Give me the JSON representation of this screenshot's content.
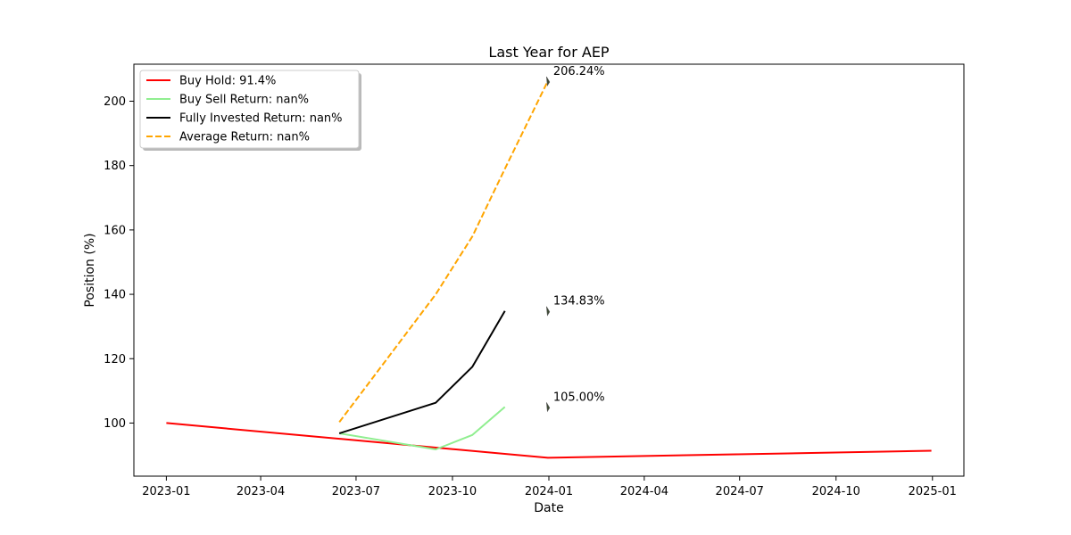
{
  "chart_data": {
    "type": "line",
    "title": "Last Year for AEP",
    "xlabel": "Date",
    "ylabel": "Position (%)",
    "xlim": [
      "2022-12-01",
      "2025-01-31"
    ],
    "ylim": [
      83.5,
      211.5
    ],
    "x_ticks": [
      "2023-01",
      "2023-04",
      "2023-07",
      "2023-10",
      "2024-01",
      "2024-04",
      "2024-07",
      "2024-10",
      "2025-01"
    ],
    "y_ticks": [
      100,
      120,
      140,
      160,
      180,
      200
    ],
    "grid": false,
    "legend_position": "top-left",
    "series": [
      {
        "name": "Buy Hold: 91.4%",
        "color": "#ff0000",
        "dash": "solid",
        "points": [
          [
            "2023-01-01",
            100.0
          ],
          [
            "2023-12-31",
            89.2
          ],
          [
            "2024-12-31",
            91.4
          ]
        ]
      },
      {
        "name": "Buy Sell Return: nan%",
        "color": "#90ee90",
        "dash": "solid",
        "points": [
          [
            "2023-06-15",
            96.8
          ],
          [
            "2023-09-15",
            91.8
          ],
          [
            "2023-10-20",
            96.3
          ],
          [
            "2023-11-20",
            105.0
          ]
        ]
      },
      {
        "name": "Fully Invested Return: nan%",
        "color": "#000000",
        "dash": "solid",
        "points": [
          [
            "2023-06-15",
            96.8
          ],
          [
            "2023-09-15",
            106.3
          ],
          [
            "2023-10-20",
            117.5
          ],
          [
            "2023-11-20",
            134.83
          ]
        ]
      },
      {
        "name": "Average Return: nan%",
        "color": "#ffa500",
        "dash": "dashed",
        "points": [
          [
            "2023-06-15",
            100.3
          ],
          [
            "2023-09-15",
            140.0
          ],
          [
            "2023-10-20",
            158.0
          ],
          [
            "2023-11-20",
            179.0
          ],
          [
            "2023-12-31",
            206.24
          ]
        ]
      }
    ],
    "annotations": [
      {
        "text": "206.24%",
        "date": "2023-12-31",
        "value": 206.24
      },
      {
        "text": "134.83%",
        "date": "2023-12-31",
        "value": 134.83
      },
      {
        "text": "105.00%",
        "date": "2023-12-31",
        "value": 105.0
      }
    ]
  }
}
